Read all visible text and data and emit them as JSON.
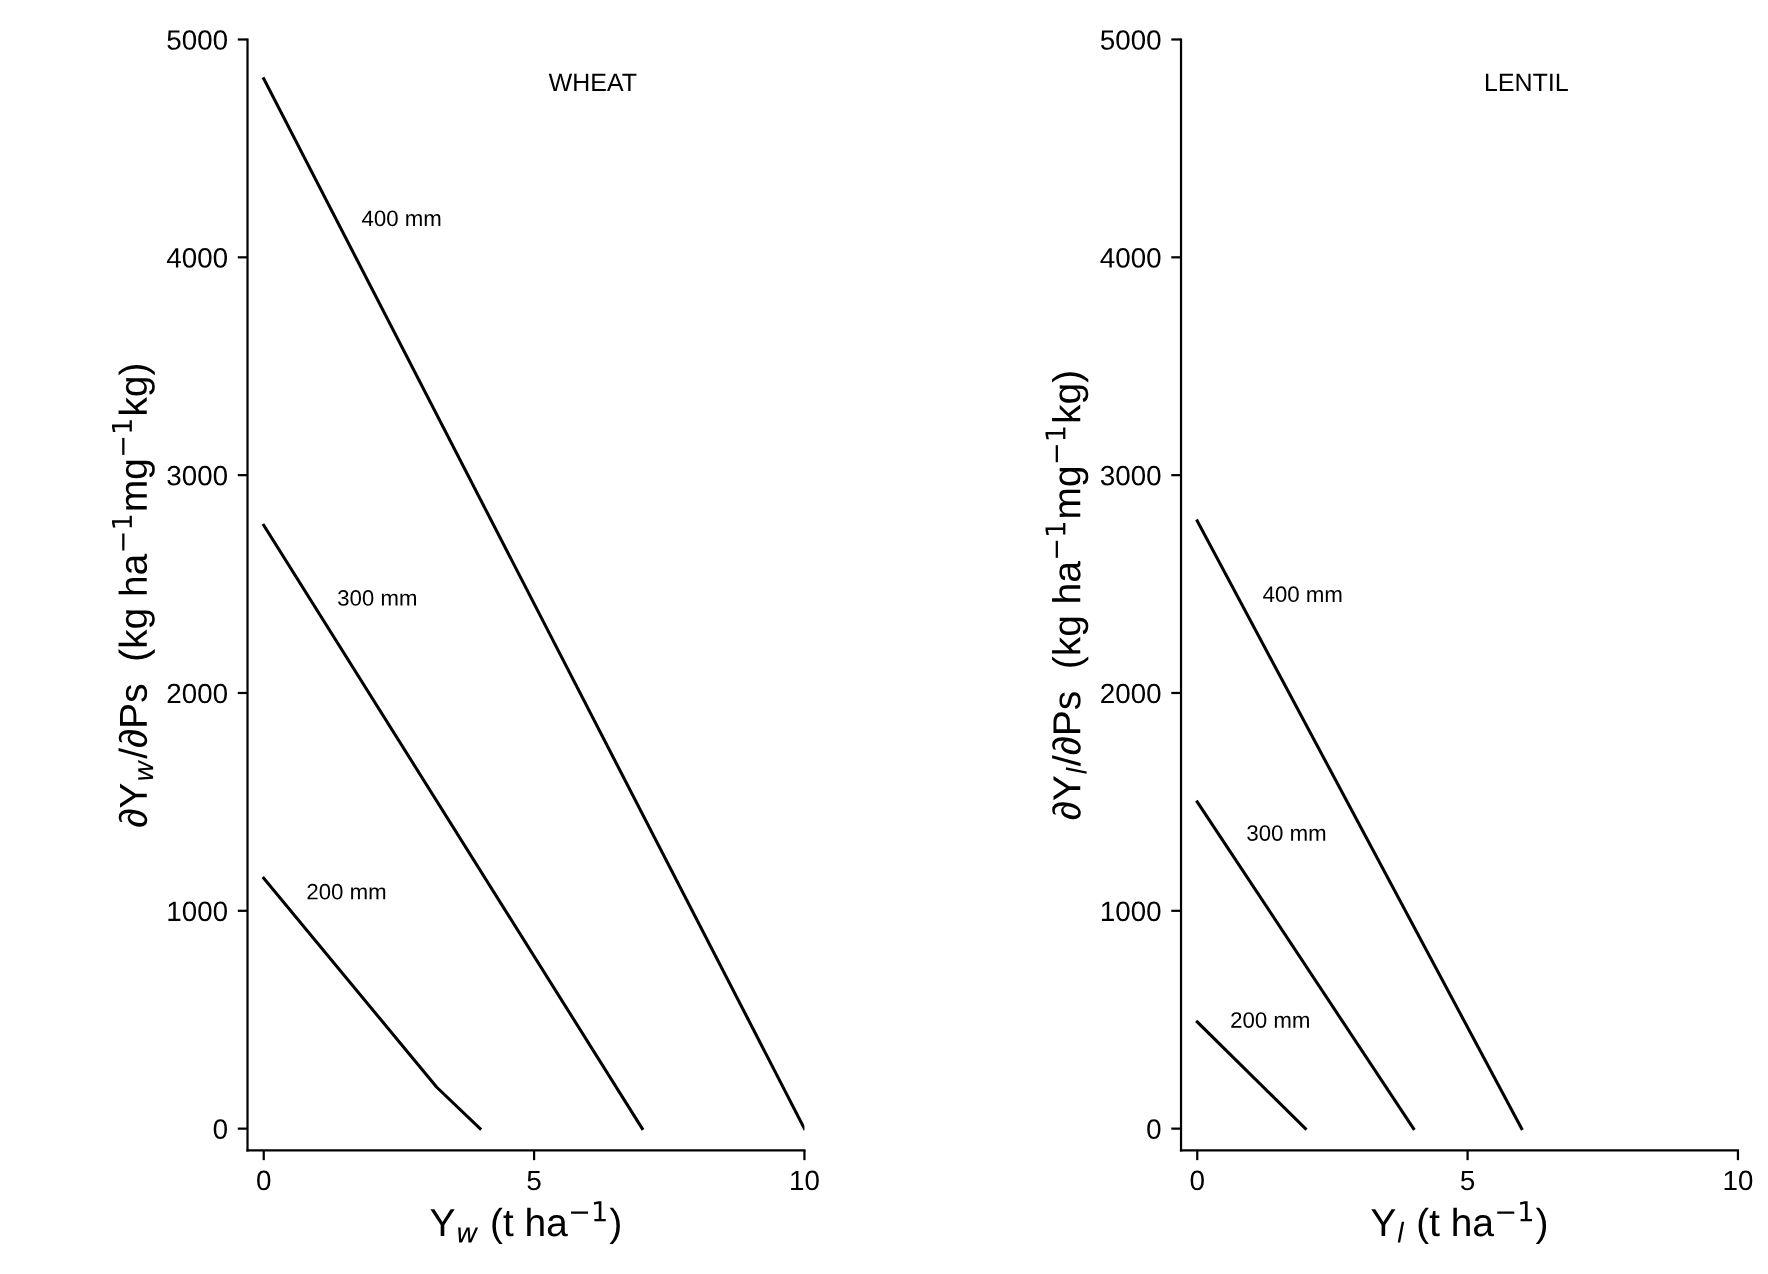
{
  "chart_data": [
    {
      "type": "line",
      "title": "WHEAT",
      "xlabel": "Y$_{w}$ (t ha$^{−1}$)",
      "ylabel": "∂Y$_{w}$/∂Ps  (kg ha$^{−1}$mg$^{−1}$kg)",
      "series": [
        {
          "name": "400 mm",
          "color": "#000000",
          "x": [
            0,
            10
          ],
          "values": [
            4820,
            0
          ]
        },
        {
          "name": "300 mm",
          "color": "#000000",
          "x": [
            0,
            7
          ],
          "values": [
            2770,
            0
          ]
        },
        {
          "name": "200 mm",
          "color": "#000000",
          "x": [
            0,
            3.2,
            4
          ],
          "values": [
            1150,
            190,
            0
          ]
        }
      ],
      "xlim": [
        -0.3,
        10
      ],
      "ylim": [
        -100,
        5000
      ],
      "xticks": [
        0,
        5,
        10
      ],
      "yticks": [
        0,
        1000,
        2000,
        3000,
        4000,
        5000
      ],
      "grid": false,
      "legend": false
    },
    {
      "type": "line",
      "title": "LENTIL",
      "xlabel": "Y$_{l}$ (t ha$^{−1}$)",
      "ylabel": "∂Y$_{l}$/∂Ps  (kg ha$^{−1}$mg$^{−1}$kg)",
      "series": [
        {
          "name": "400 mm",
          "color": "#000000",
          "x": [
            0,
            6
          ],
          "values": [
            2790,
            0
          ]
        },
        {
          "name": "300 mm",
          "color": "#000000",
          "x": [
            0,
            4
          ],
          "values": [
            1500,
            0
          ]
        },
        {
          "name": "200 mm",
          "color": "#000000",
          "x": [
            0,
            2
          ],
          "values": [
            490,
            0
          ]
        }
      ],
      "xlim": [
        -0.3,
        10
      ],
      "ylim": [
        -100,
        5000
      ],
      "xticks": [
        0,
        5,
        10
      ],
      "yticks": [
        0,
        1000,
        2000,
        3000,
        4000,
        5000
      ],
      "grid": false,
      "legend": false
    }
  ]
}
